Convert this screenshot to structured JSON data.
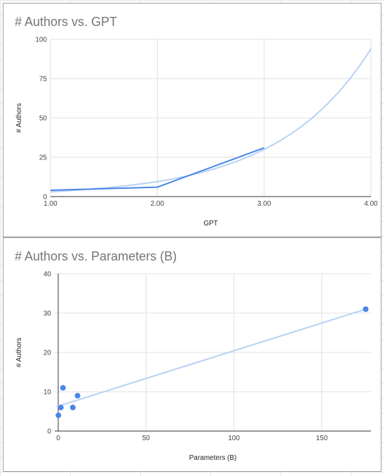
{
  "colors": {
    "series": "#4a86e8",
    "trend": "#b7d2f4",
    "grid": "#e0e0e0",
    "axis": "#333333"
  },
  "chart_data": [
    {
      "type": "line",
      "title": "# Authors vs. GPT",
      "xlabel": "GPT",
      "ylabel": "# Authors",
      "xlim": [
        1,
        4
      ],
      "ylim": [
        0,
        100
      ],
      "x_ticks": [
        "1.00",
        "2.00",
        "3.00",
        "4.00"
      ],
      "y_ticks": [
        "0",
        "25",
        "50",
        "75",
        "100"
      ],
      "grid": true,
      "legend": "none",
      "series": [
        {
          "x": [
            1,
            2,
            3
          ],
          "y": [
            4,
            6,
            31
          ]
        }
      ],
      "trendline": {
        "kind": "exponential",
        "x": [
          1,
          1.5,
          2,
          2.5,
          3,
          3.5,
          4
        ],
        "y": [
          3,
          5.5,
          9.5,
          17,
          30,
          53,
          94
        ]
      }
    },
    {
      "type": "scatter",
      "title": "# Authors vs. Parameters (B)",
      "xlabel": "Parameters (B)",
      "ylabel": "# Authors",
      "xlim": [
        -2,
        178
      ],
      "ylim": [
        0,
        40
      ],
      "x_ticks": [
        "0",
        "50",
        "100",
        "150"
      ],
      "y_ticks": [
        "0",
        "10",
        "20",
        "30",
        "40"
      ],
      "grid": true,
      "legend": "none",
      "series": [
        {
          "x": [
            0.1,
            1.5,
            2.7,
            8.3,
            11,
            175
          ],
          "y": [
            4,
            6,
            11,
            6,
            9,
            31
          ]
        }
      ],
      "trendline": {
        "kind": "linear",
        "x": [
          -1,
          175
        ],
        "y": [
          6.2,
          31
        ]
      }
    }
  ]
}
